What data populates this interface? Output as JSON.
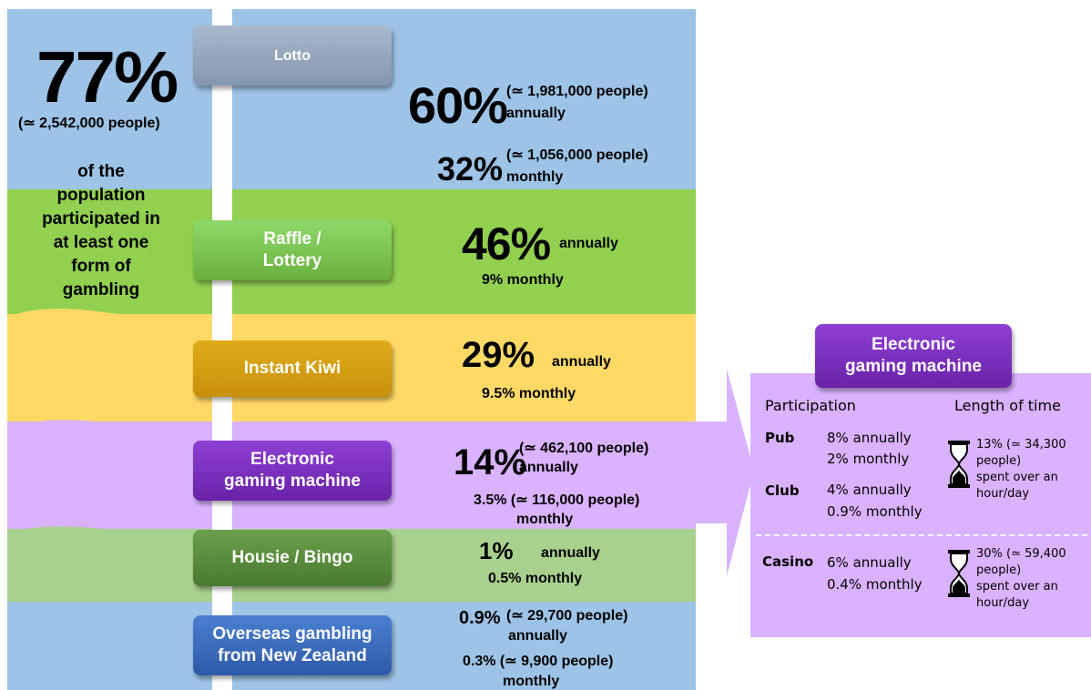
{
  "summary": {
    "percent": "77%",
    "people": "(≃ 2,542,000 people)",
    "caption": "of the\npopulation\nparticipated in\nat least one\nform of\ngambling"
  },
  "rows": [
    {
      "label": "Lotto",
      "headline": "60%",
      "headline_note": "(≃ 1,981,000 people)",
      "headline_period": "annually",
      "second": "32%",
      "second_note": "(≃ 1,056,000 people)",
      "second_period": "monthly"
    },
    {
      "label": "Raffle /\nLottery",
      "headline": "46%",
      "headline_period": "annually",
      "second": "9% monthly"
    },
    {
      "label": "Instant Kiwi",
      "headline": "29%",
      "headline_period": "annually",
      "second": "9.5% monthly"
    },
    {
      "label": "Electronic\ngaming machine",
      "headline": "14%",
      "headline_note": "(≃ 462,100 people)",
      "headline_period": "annually",
      "second": "3.5% (≃ 116,000 people)",
      "second_period": "monthly"
    },
    {
      "label": "Housie / Bingo",
      "headline": "1%",
      "headline_period": "annually",
      "second": "0.5% monthly"
    },
    {
      "label": "Overseas gambling\nfrom New Zealand",
      "headline": "0.9%",
      "headline_note": "(≃ 29,700 people)",
      "headline_period": "annually",
      "second": "0.3% (≃ 9,900 people)",
      "second_period": "monthly"
    }
  ],
  "panel": {
    "title": "Electronic\ngaming machine",
    "col_participation": "Participation",
    "col_length": "Length of time",
    "venues": [
      {
        "name": "Pub",
        "annual": "8% annually",
        "monthly": "2% monthly"
      },
      {
        "name": "Club",
        "annual": "4% annually",
        "monthly": "0.9% monthly"
      },
      {
        "name": "Casino",
        "annual": "6% annually",
        "monthly": "0.4% monthly"
      }
    ],
    "time_pub_club": "13% (≃ 34,300\npeople)\nspent over an\nhour/day",
    "time_casino": "30% (≃ 59,400\npeople)\nspent over an\nhour/day"
  },
  "colors": {
    "lotto": "#9dc3e6",
    "raffle": "#92d050",
    "instant": "#ffd966",
    "egm": "#d9b3ff",
    "housie": "#a9d18e",
    "overseas": "#9dc3e6"
  },
  "icons": [
    "hourglass-icon",
    "arrow-icon"
  ]
}
